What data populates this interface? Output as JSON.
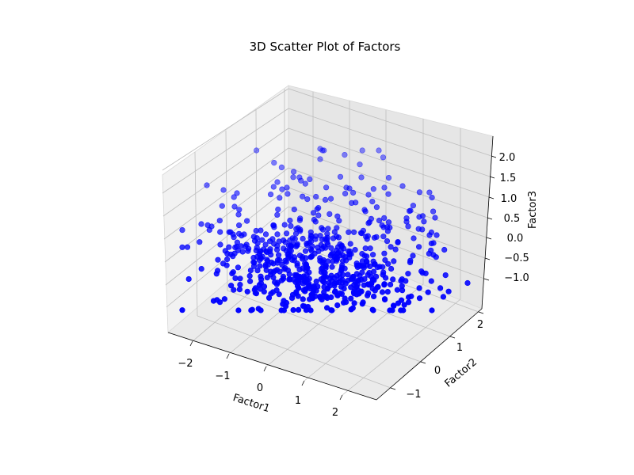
{
  "chart_data": {
    "type": "scatter",
    "projection": "3d",
    "title": "3D Scatter Plot of Factors",
    "xlabel": "Factor1",
    "ylabel": "Factor2",
    "zlabel": "Factor3",
    "xlim": [
      -2.6,
      2.6
    ],
    "ylim": [
      -1.6,
      2.8
    ],
    "zlim": [
      -1.3,
      2.4
    ],
    "xticks": [
      "−2",
      "−1",
      "0",
      "1",
      "2"
    ],
    "yticks": [
      "−1",
      "0",
      "1",
      "2"
    ],
    "zticks": [
      "−1.0",
      "−0.5",
      "0.0",
      "0.5",
      "1.0",
      "1.5",
      "2.0"
    ],
    "grid": true,
    "marker_color": "#0000ff",
    "point_count": 650
  }
}
